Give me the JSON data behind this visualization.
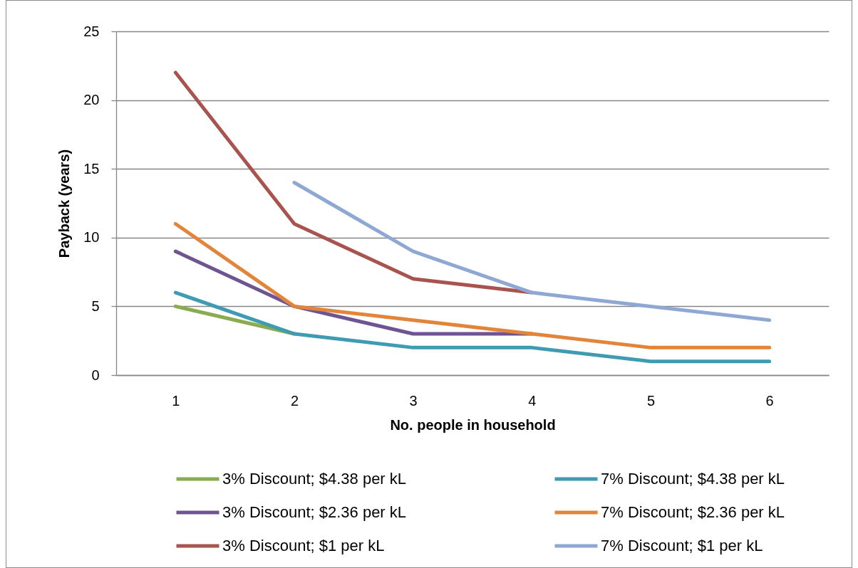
{
  "chart_data": {
    "type": "line",
    "xlabel": "No. people in household",
    "ylabel": "Payback (years)",
    "categories": [
      "1",
      "2",
      "3",
      "4",
      "5",
      "6"
    ],
    "series": [
      {
        "name": "3% Discount; $4.38 per kL",
        "color": "#8aab4f",
        "values": [
          5,
          3,
          null,
          null,
          null,
          null
        ]
      },
      {
        "name": "7% Discount; $4.38 per kL",
        "color": "#3e9bb1",
        "values": [
          6,
          3,
          2,
          2,
          1,
          1
        ]
      },
      {
        "name": "3% Discount; $2.36 per kL",
        "color": "#6e5592",
        "values": [
          9,
          5,
          3,
          3,
          null,
          null
        ]
      },
      {
        "name": "7% Discount; $2.36 per kL",
        "color": "#e2843a",
        "values": [
          11,
          5,
          4,
          3,
          2,
          2
        ]
      },
      {
        "name": "3% Discount; $1 per kL",
        "color": "#a9534f",
        "values": [
          22,
          11,
          7,
          6,
          null,
          null
        ]
      },
      {
        "name": "7% Discount; $1 per kL",
        "color": "#8ea8d3",
        "values": [
          null,
          14,
          9,
          6,
          5,
          4
        ]
      }
    ],
    "ylim": [
      0,
      25
    ],
    "yticks": [
      0,
      5,
      10,
      15,
      20,
      25
    ],
    "grid": "y",
    "legend": "bottom"
  }
}
